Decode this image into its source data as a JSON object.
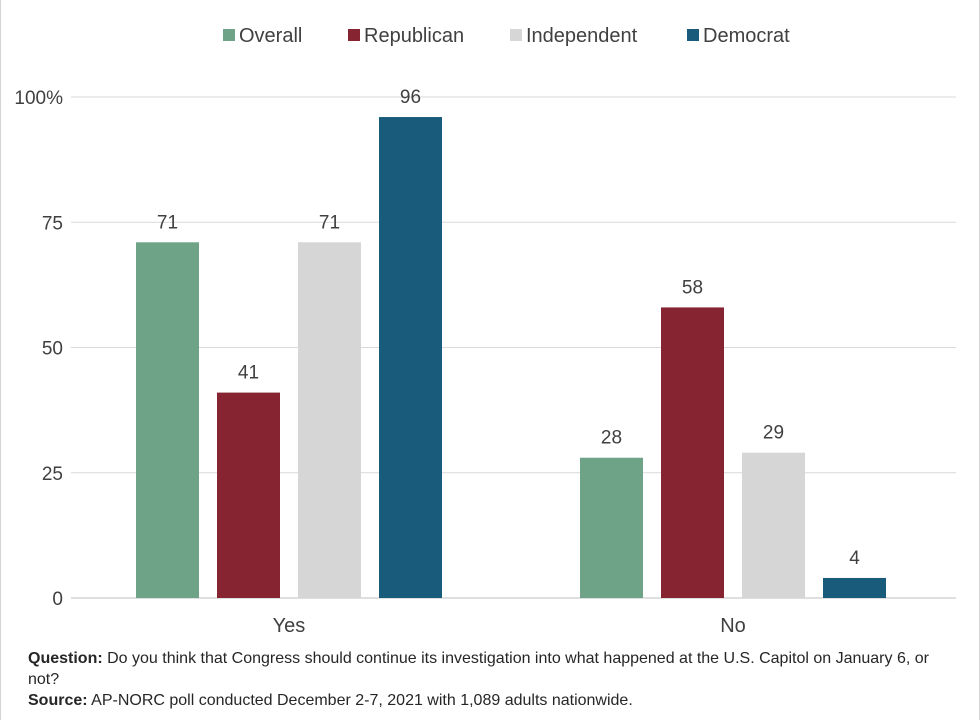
{
  "chart_data": {
    "type": "bar",
    "categories": [
      "Yes",
      "No"
    ],
    "series": [
      {
        "name": "Overall",
        "color": "#6fa387",
        "values": [
          71,
          28
        ]
      },
      {
        "name": "Republican",
        "color": "#862432",
        "values": [
          41,
          58
        ]
      },
      {
        "name": "Independent",
        "color": "#d6d6d6",
        "values": [
          71,
          29
        ]
      },
      {
        "name": "Democrat",
        "color": "#185b7b",
        "values": [
          96,
          4
        ]
      }
    ],
    "ylim": [
      0,
      100
    ],
    "yticks": [
      {
        "value": 0,
        "label": "0"
      },
      {
        "value": 25,
        "label": "25"
      },
      {
        "value": 50,
        "label": "50"
      },
      {
        "value": 75,
        "label": "75"
      },
      {
        "value": 100,
        "label": "100%"
      }
    ],
    "grid": true,
    "legend_position": "top"
  },
  "footnote": {
    "question_label": "Question:",
    "question_text": "Do you think that Congress should continue its investigation into what happened at the U.S. Capitol on January 6, or not?",
    "source_label": "Source:",
    "source_text": "AP-NORC poll conducted December 2-7, 2021 with 1,089 adults nationwide."
  }
}
